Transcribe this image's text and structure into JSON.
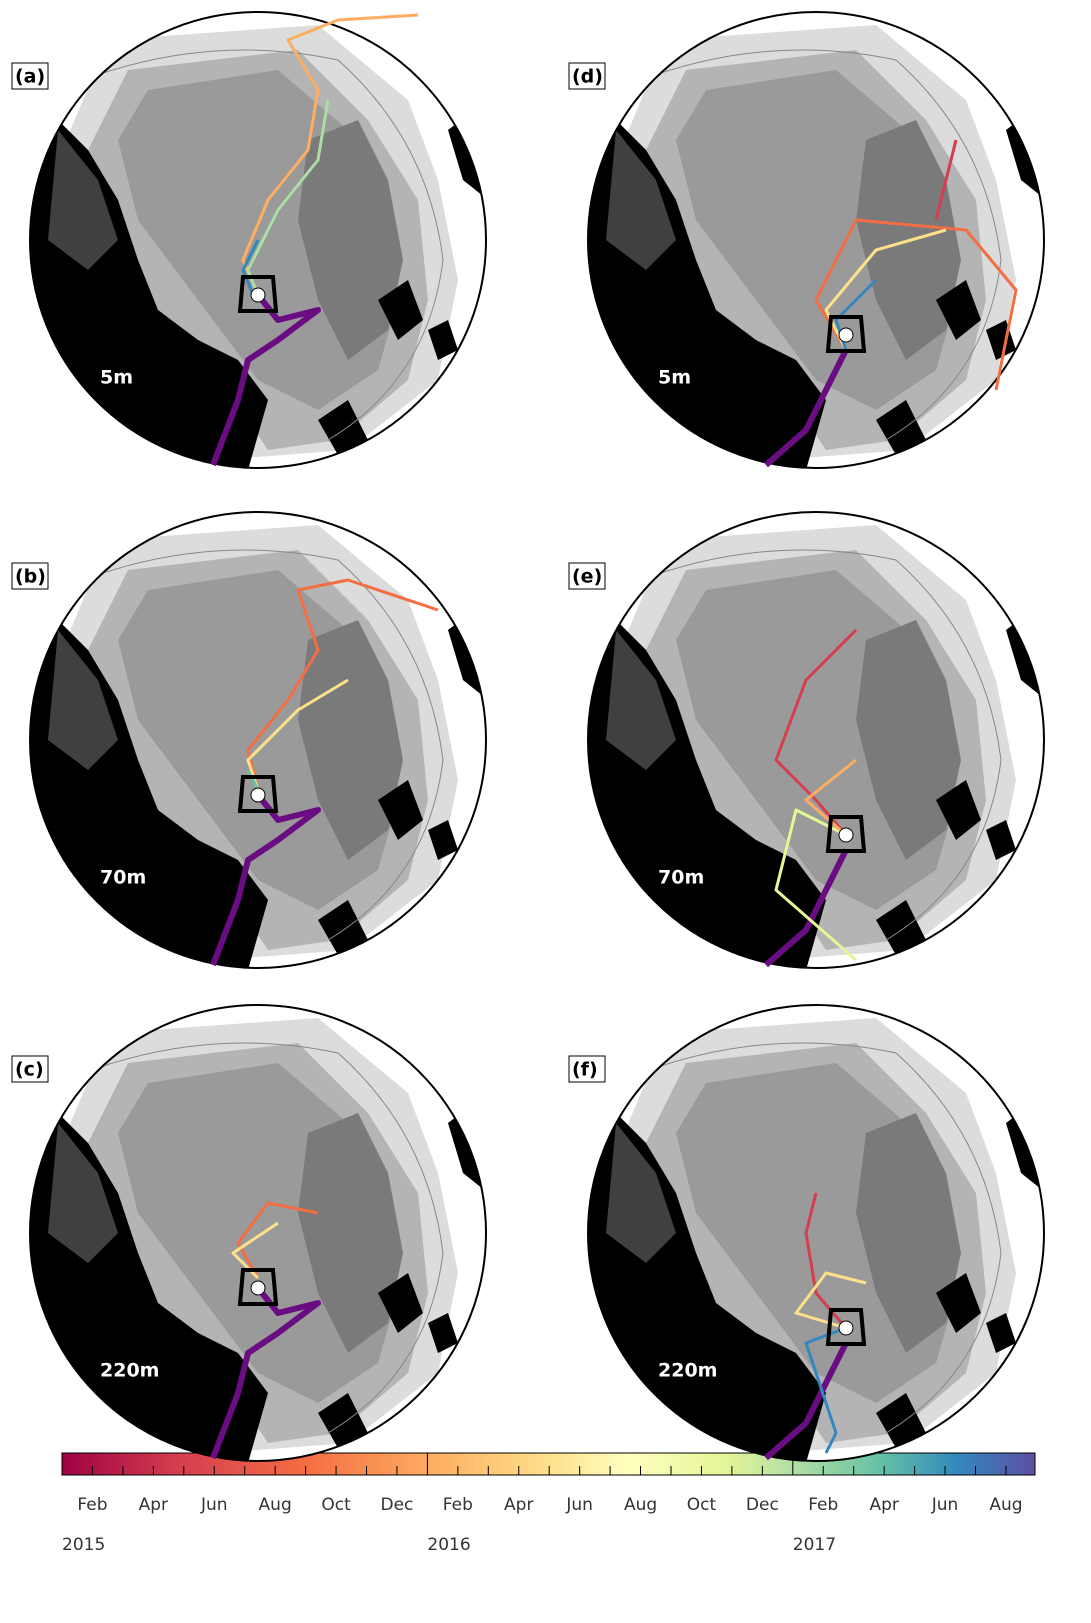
{
  "panels": [
    {
      "label": "(a)",
      "depth": "5m"
    },
    {
      "label": "(b)",
      "depth": "70m"
    },
    {
      "label": "(c)",
      "depth": "220m"
    },
    {
      "label": "(d)",
      "depth": "5m"
    },
    {
      "label": "(e)",
      "depth": "70m"
    },
    {
      "label": "(f)",
      "depth": "220m"
    }
  ],
  "colorbar": {
    "months": [
      "Feb",
      "Apr",
      "Jun",
      "Aug",
      "Oct",
      "Dec",
      "Feb",
      "Apr",
      "Jun",
      "Aug",
      "Oct",
      "Dec",
      "Feb",
      "Apr",
      "Jun",
      "Aug"
    ],
    "years": [
      "2015",
      "2016",
      "2017"
    ]
  }
}
